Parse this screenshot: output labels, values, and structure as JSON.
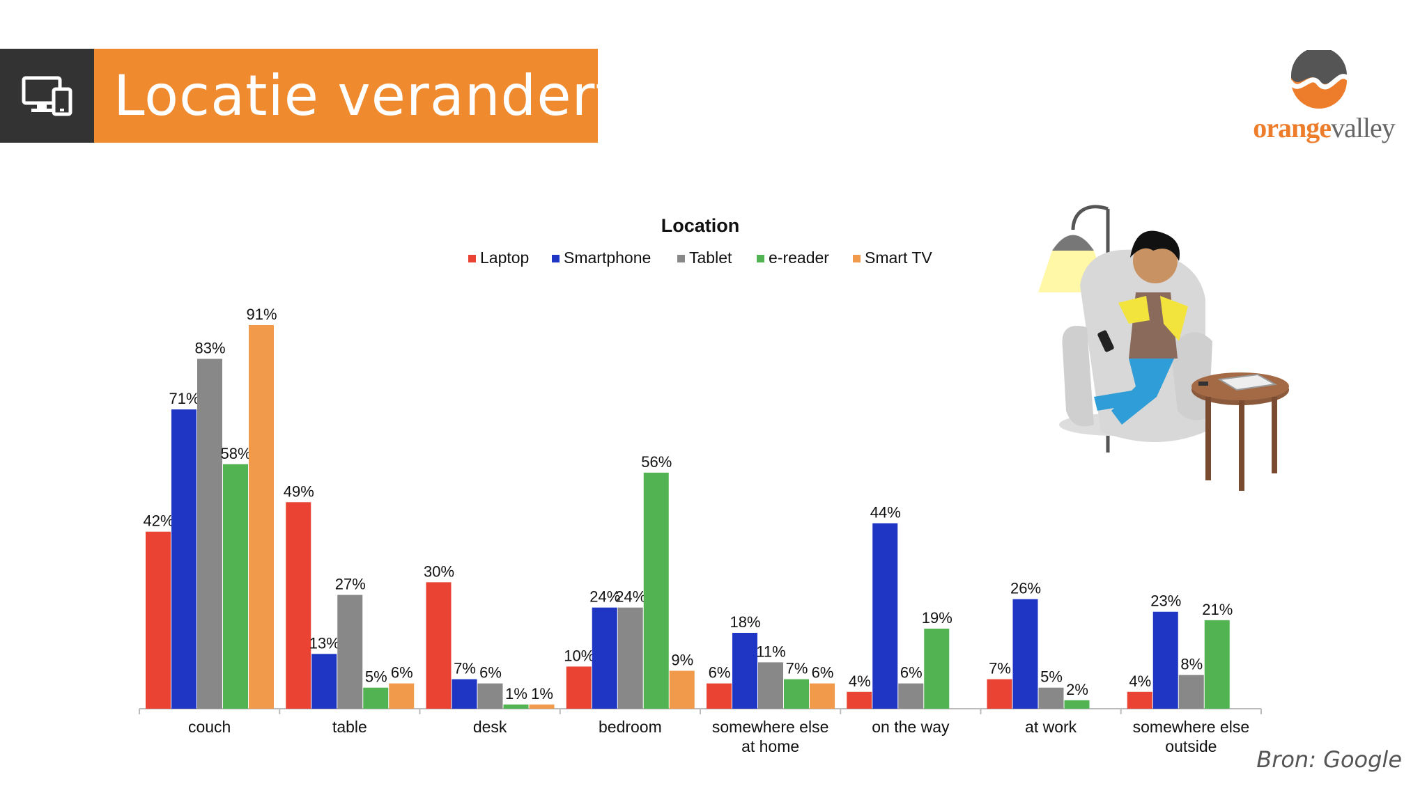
{
  "header": {
    "title": "Locatie verandert",
    "icon": "devices-icon",
    "bg_color": "#ef8a2f",
    "icon_box_color": "#333333"
  },
  "logo": {
    "part1": "orange",
    "part2": "valley"
  },
  "source": "Bron: Google",
  "chart_data": {
    "type": "bar",
    "title": "Location",
    "legend_position": "top",
    "grid": false,
    "categories": [
      [
        "couch"
      ],
      [
        "table"
      ],
      [
        "desk"
      ],
      [
        "bedroom"
      ],
      [
        "somewhere else",
        "at home"
      ],
      [
        "on the way"
      ],
      [
        "at work"
      ],
      [
        "somewhere else",
        "outside"
      ]
    ],
    "ylim": [
      0,
      100
    ],
    "value_suffix": "%",
    "series": [
      {
        "name": "Laptop",
        "color": "#ea4333",
        "values": [
          42,
          49,
          30,
          10,
          6,
          4,
          7,
          4
        ]
      },
      {
        "name": "Smartphone",
        "color": "#1f36c4",
        "values": [
          71,
          13,
          7,
          24,
          18,
          44,
          26,
          23
        ]
      },
      {
        "name": "Tablet",
        "color": "#888888",
        "values": [
          83,
          27,
          6,
          24,
          11,
          6,
          5,
          8
        ]
      },
      {
        "name": "e-reader",
        "color": "#52b352",
        "values": [
          58,
          5,
          1,
          56,
          7,
          19,
          2,
          21
        ]
      },
      {
        "name": "Smart TV",
        "color": "#f19a4b",
        "values": [
          91,
          6,
          1,
          9,
          6,
          null,
          null,
          null
        ]
      }
    ]
  }
}
